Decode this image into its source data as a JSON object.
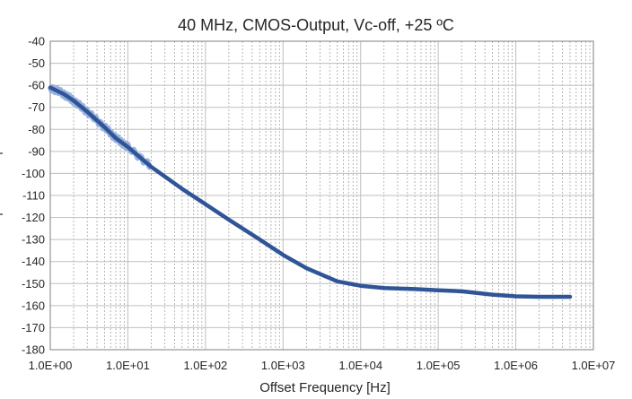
{
  "chart_data": {
    "type": "line",
    "title": "40 MHz, CMOS-Output, Vc-off, +25 ºC",
    "xlabel": "Offset Frequency [Hz]",
    "ylabel": "",
    "x_scale": "log",
    "xlim": [
      1,
      10000000
    ],
    "ylim": [
      -180,
      -40
    ],
    "grid": true,
    "legend": "none",
    "x_tick_labels": [
      "1.0E+00",
      "1.0E+01",
      "1.0E+02",
      "1.0E+03",
      "1.0E+04",
      "1.0E+05",
      "1.0E+06",
      "1.0E+07"
    ],
    "y_tick_labels": [
      "-40",
      "-50",
      "-60",
      "-70",
      "-80",
      "-90",
      "-100",
      "-110",
      "-120",
      "-130",
      "-140",
      "-150",
      "-160",
      "-170",
      "-180"
    ],
    "series": [
      {
        "x": [
          1,
          1.5,
          2,
          3,
          5,
          7,
          10,
          20,
          50,
          100,
          200,
          500,
          1000,
          2000,
          5000,
          10000,
          20000,
          50000,
          100000,
          200000,
          500000,
          1000000,
          2000000,
          5000000
        ],
        "y": [
          -61,
          -64,
          -67,
          -72,
          -79,
          -84,
          -88,
          -97,
          -107,
          -114,
          -121,
          -130,
          -137,
          -143,
          -149,
          -151,
          -152,
          -152.5,
          -153,
          -153.5,
          -155,
          -155.8,
          -156,
          -156
        ]
      }
    ],
    "colors": {
      "line": "#2f5597",
      "line_scatter": "#8faadc",
      "major_grid": "#bfbfbf",
      "minor_grid": "#a6a6a6",
      "axis": "#7f7f7f"
    }
  }
}
